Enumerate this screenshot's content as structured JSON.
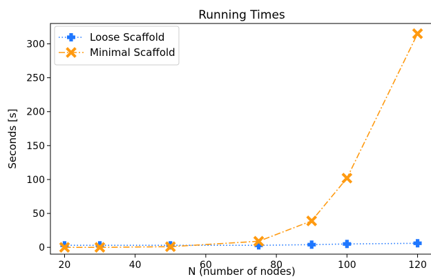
{
  "chart_data": {
    "type": "line",
    "title": "Running Times",
    "xlabel": "N (number of nodes)",
    "ylabel": "Seconds [s]",
    "xlim": [
      16,
      124
    ],
    "ylim": [
      -10,
      330
    ],
    "xticks": [
      20,
      40,
      60,
      80,
      100,
      120
    ],
    "yticks": [
      0,
      50,
      100,
      150,
      200,
      250,
      300
    ],
    "grid": false,
    "legend": "top-left",
    "series": [
      {
        "name": "Loose Scaffold",
        "color": "#1f77ff",
        "line_style": "dotted",
        "marker": "plus",
        "x": [
          20,
          30,
          50,
          75,
          90,
          100,
          120
        ],
        "y": [
          3,
          3,
          3,
          3,
          4,
          5,
          6
        ]
      },
      {
        "name": "Minimal Scaffold",
        "color": "#ff9a10",
        "line_style": "dashdot",
        "marker": "x",
        "x": [
          20,
          30,
          50,
          75,
          90,
          100,
          120
        ],
        "y": [
          0,
          0,
          1,
          9,
          39,
          102,
          315
        ]
      }
    ]
  }
}
